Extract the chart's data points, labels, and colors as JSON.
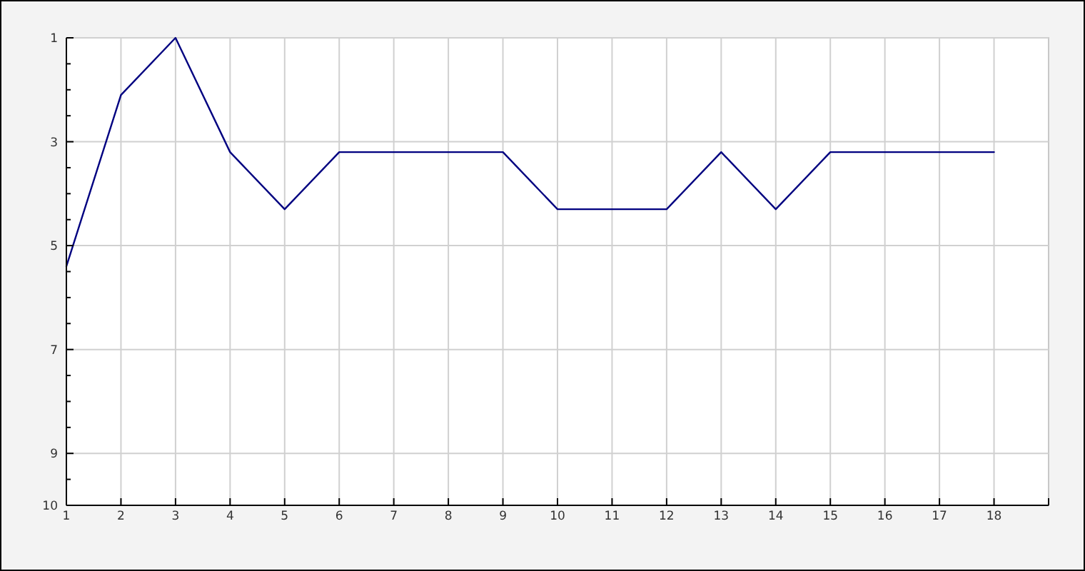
{
  "chart_data": {
    "type": "line",
    "x": [
      1,
      2,
      3,
      4,
      5,
      6,
      7,
      8,
      9,
      10,
      11,
      12,
      13,
      14,
      15,
      16,
      17,
      18
    ],
    "values": [
      5.4,
      2.1,
      1,
      3.2,
      4.3,
      3.2,
      3.2,
      3.2,
      3.2,
      4.3,
      4.3,
      4.3,
      3.2,
      4.3,
      3.2,
      3.2,
      3.2,
      3.2
    ],
    "color": "#000080",
    "line_style": "solid",
    "xlim": [
      1,
      19
    ],
    "xticks": [
      1,
      2,
      3,
      4,
      5,
      6,
      7,
      8,
      9,
      10,
      11,
      12,
      13,
      14,
      15,
      16,
      17,
      18
    ],
    "ylim": [
      10,
      1
    ],
    "yticks": [
      1,
      {
        "value": 1.5,
        "label": null
      },
      {
        "value": 2,
        "label": null
      },
      {
        "value": 2.5,
        "label": null
      },
      3,
      {
        "value": 3.5,
        "label": null
      },
      {
        "value": 4,
        "label": null
      },
      {
        "value": 4.5,
        "label": null
      },
      5,
      {
        "value": 5.5,
        "label": null
      },
      {
        "value": 6,
        "label": null
      },
      {
        "value": 6.5,
        "label": null
      },
      7,
      {
        "value": 7.5,
        "label": null
      },
      {
        "value": 8,
        "label": null
      },
      {
        "value": 8.5,
        "label": null
      },
      9,
      {
        "value": 9.5,
        "label": null
      },
      10
    ],
    "grid": true
  }
}
